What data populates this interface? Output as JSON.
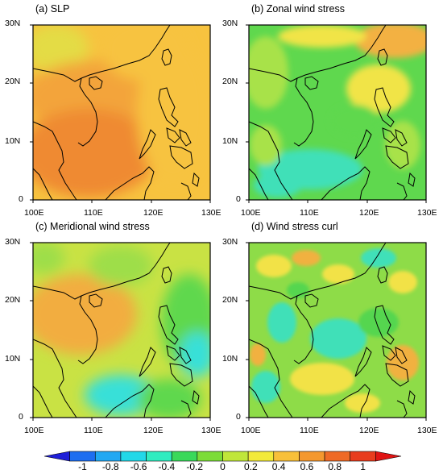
{
  "panels": [
    {
      "id": "a",
      "title": "(a) SLP"
    },
    {
      "id": "b",
      "title": "(b) Zonal wind stress"
    },
    {
      "id": "c",
      "title": "(c) Meridional wind stress"
    },
    {
      "id": "d",
      "title": "(d) Wind stress curl"
    }
  ],
  "axes": {
    "x_ticks": [
      "100E",
      "110E",
      "120E",
      "130E"
    ],
    "y_ticks": [
      "30N",
      "20N",
      "10N",
      "0"
    ]
  },
  "colorbar": {
    "labels": [
      "-1",
      "-0.8",
      "-0.6",
      "-0.4",
      "-0.2",
      "0",
      "0.2",
      "0.4",
      "0.6",
      "0.8",
      "1"
    ],
    "colors": [
      "#1f1fd8",
      "#1e6ef0",
      "#22a8f2",
      "#22d8e8",
      "#30ecc0",
      "#3ad85a",
      "#7cdc38",
      "#c0e63a",
      "#f2ea3a",
      "#f8c03a",
      "#f4982e",
      "#ee6a26",
      "#e83c1e",
      "#e01414"
    ]
  },
  "map_colors": {
    "panel_a": {
      "base": "#f7c33f",
      "warm": "#f3a43a",
      "hot": "#ef8a33",
      "cool": "#e4dc44"
    },
    "panel_b": {
      "base": "#5fd84e",
      "light": "#a8e24a",
      "cyan": "#3fe0b8",
      "yellow": "#f1e447",
      "orange": "#f3b142"
    },
    "panel_c": {
      "base": "#c9e244",
      "orange": "#f2ad40",
      "green": "#5fd84e",
      "cyan": "#38e0d8",
      "light": "#9ede49"
    },
    "panel_d": {
      "base": "#8edc48",
      "yellow": "#f2e247",
      "cyan": "#40e0b8",
      "orange": "#f1b141",
      "green": "#55d650"
    }
  }
}
